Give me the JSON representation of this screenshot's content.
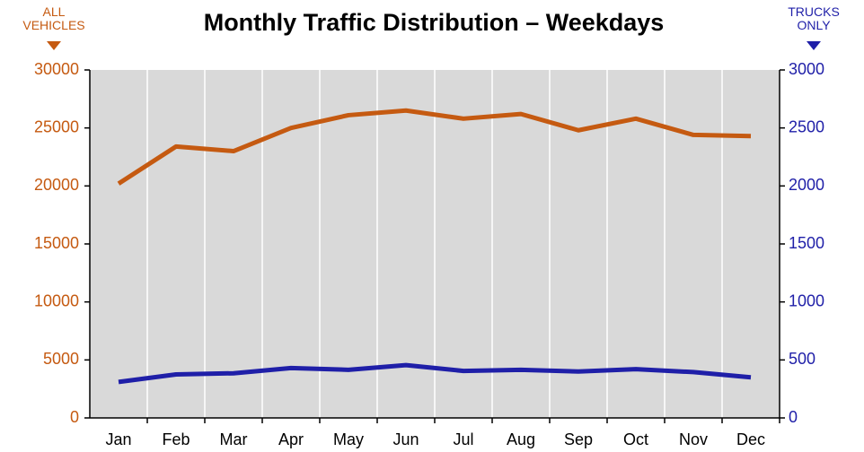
{
  "chart_data": {
    "type": "line",
    "title": "Monthly Traffic Distribution – Weekdays",
    "ylabel": "ALL VEHICLES",
    "y2label": "TRUCKS ONLY",
    "categories": [
      "Jan",
      "Feb",
      "Mar",
      "Apr",
      "May",
      "Jun",
      "Jul",
      "Aug",
      "Sep",
      "Oct",
      "Nov",
      "Dec"
    ],
    "series": [
      {
        "name": "All Vehicles",
        "color": "#c55a11",
        "values": [
          20200,
          23400,
          23000,
          25000,
          26100,
          26500,
          25800,
          26200,
          24800,
          25800,
          24400,
          24300
        ]
      },
      {
        "name": "Trucks Only",
        "color": "#1f1fa8",
        "axis": "y2",
        "values": [
          310,
          375,
          385,
          430,
          415,
          455,
          405,
          415,
          400,
          420,
          395,
          350
        ]
      }
    ],
    "ylim": [
      0,
      30000
    ],
    "yticks": [
      0,
      5000,
      10000,
      15000,
      20000,
      25000,
      30000
    ],
    "y2lim": [
      0,
      3000
    ],
    "y2ticks": [
      0,
      500,
      1000,
      1500,
      2000,
      2500,
      3000
    ],
    "ycolor": "#c55a11",
    "y2color": "#1f1fa8",
    "background": "#d9d9d9",
    "grid": true
  }
}
